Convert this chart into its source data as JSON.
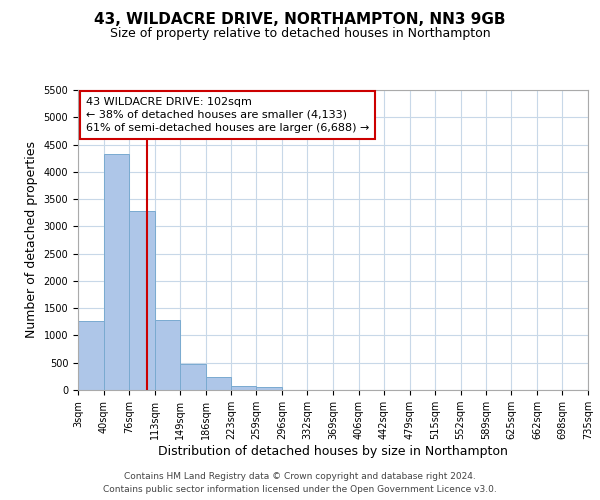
{
  "title": "43, WILDACRE DRIVE, NORTHAMPTON, NN3 9GB",
  "subtitle": "Size of property relative to detached houses in Northampton",
  "xlabel": "Distribution of detached houses by size in Northampton",
  "ylabel": "Number of detached properties",
  "bar_color": "#aec6e8",
  "bar_edge_color": "#7aaad0",
  "background_color": "#ffffff",
  "grid_color": "#c8d8e8",
  "annotation_line_color": "#cc0000",
  "annotation_box_edge": "#cc0000",
  "bin_edges": [
    3,
    40,
    76,
    113,
    149,
    186,
    223,
    259,
    296,
    332,
    369,
    406,
    442,
    479,
    515,
    552,
    589,
    625,
    662,
    698,
    735
  ],
  "bar_heights": [
    1270,
    4330,
    3280,
    1280,
    480,
    235,
    80,
    50,
    0,
    0,
    0,
    0,
    0,
    0,
    0,
    0,
    0,
    0,
    0,
    0
  ],
  "tick_labels": [
    "3sqm",
    "40sqm",
    "76sqm",
    "113sqm",
    "149sqm",
    "186sqm",
    "223sqm",
    "259sqm",
    "296sqm",
    "332sqm",
    "369sqm",
    "406sqm",
    "442sqm",
    "479sqm",
    "515sqm",
    "552sqm",
    "589sqm",
    "625sqm",
    "662sqm",
    "698sqm",
    "735sqm"
  ],
  "ylim": [
    0,
    5500
  ],
  "yticks": [
    0,
    500,
    1000,
    1500,
    2000,
    2500,
    3000,
    3500,
    4000,
    4500,
    5000,
    5500
  ],
  "property_size": 102,
  "annotation_title": "43 WILDACRE DRIVE: 102sqm",
  "annotation_line1": "← 38% of detached houses are smaller (4,133)",
  "annotation_line2": "61% of semi-detached houses are larger (6,688) →",
  "footer1": "Contains HM Land Registry data © Crown copyright and database right 2024.",
  "footer2": "Contains public sector information licensed under the Open Government Licence v3.0.",
  "title_fontsize": 11,
  "subtitle_fontsize": 9,
  "xlabel_fontsize": 9,
  "ylabel_fontsize": 9,
  "tick_fontsize": 7,
  "annotation_fontsize": 8,
  "footer_fontsize": 6.5
}
